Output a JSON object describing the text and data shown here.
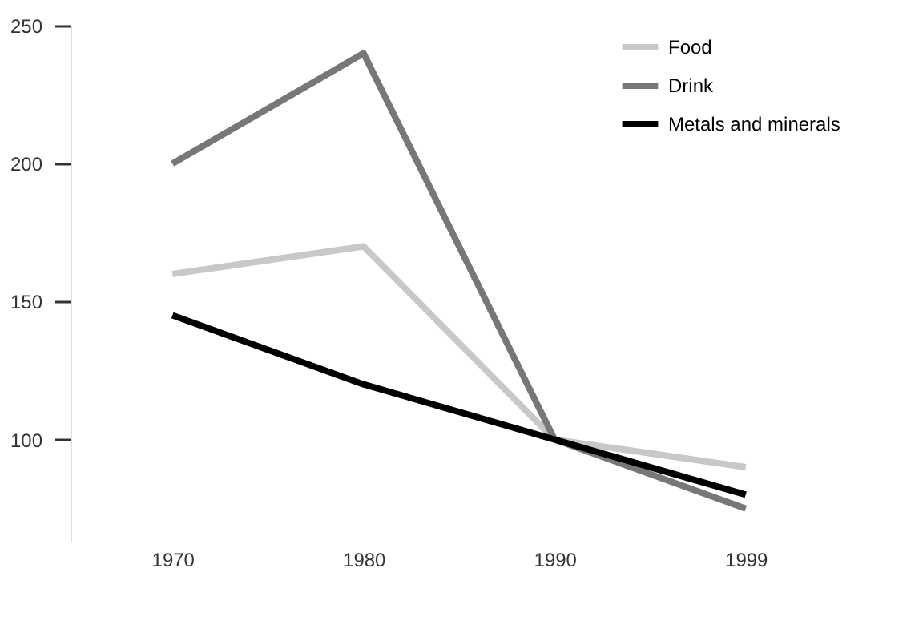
{
  "chart_data": {
    "type": "line",
    "categories": [
      "1970",
      "1980",
      "1990",
      "1999"
    ],
    "series": [
      {
        "name": "Food",
        "color": "#c8c8c8",
        "values": [
          160,
          170,
          100,
          90
        ]
      },
      {
        "name": "Drink",
        "color": "#777777",
        "values": [
          200,
          240,
          100,
          75
        ]
      },
      {
        "name": "Metals and minerals",
        "color": "#000000",
        "values": [
          145,
          120,
          100,
          80
        ]
      }
    ],
    "ylim": [
      63,
      250
    ],
    "yticks": [
      100,
      150,
      200,
      250
    ],
    "grid": false,
    "legend": "top right",
    "marker": "none",
    "line_style": "solid"
  }
}
